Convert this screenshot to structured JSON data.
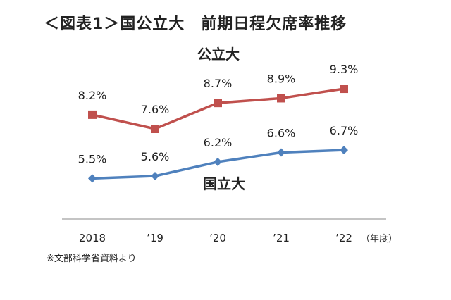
{
  "title": "＜図表1＞国公立大　前期日程欠席率推移",
  "source": "※文部科学省資料より",
  "chart_data": {
    "type": "line",
    "categories": [
      "2018",
      "’19",
      "’20",
      "’21",
      "’22"
    ],
    "x_unit_label": "（年度）",
    "series": [
      {
        "name": "公立大",
        "color": "#c0504d",
        "marker": "square",
        "values": [
          8.2,
          7.6,
          8.7,
          8.9,
          9.3
        ],
        "labels": [
          "8.2%",
          "7.6%",
          "8.7%",
          "8.9%",
          "9.3%"
        ]
      },
      {
        "name": "国立大",
        "color": "#4f81bd",
        "marker": "diamond",
        "values": [
          5.5,
          5.6,
          6.2,
          6.6,
          6.7
        ],
        "labels": [
          "5.5%",
          "5.6%",
          "6.2%",
          "6.6%",
          "6.7%"
        ]
      }
    ],
    "grid": false,
    "legend": "inline series labels"
  }
}
